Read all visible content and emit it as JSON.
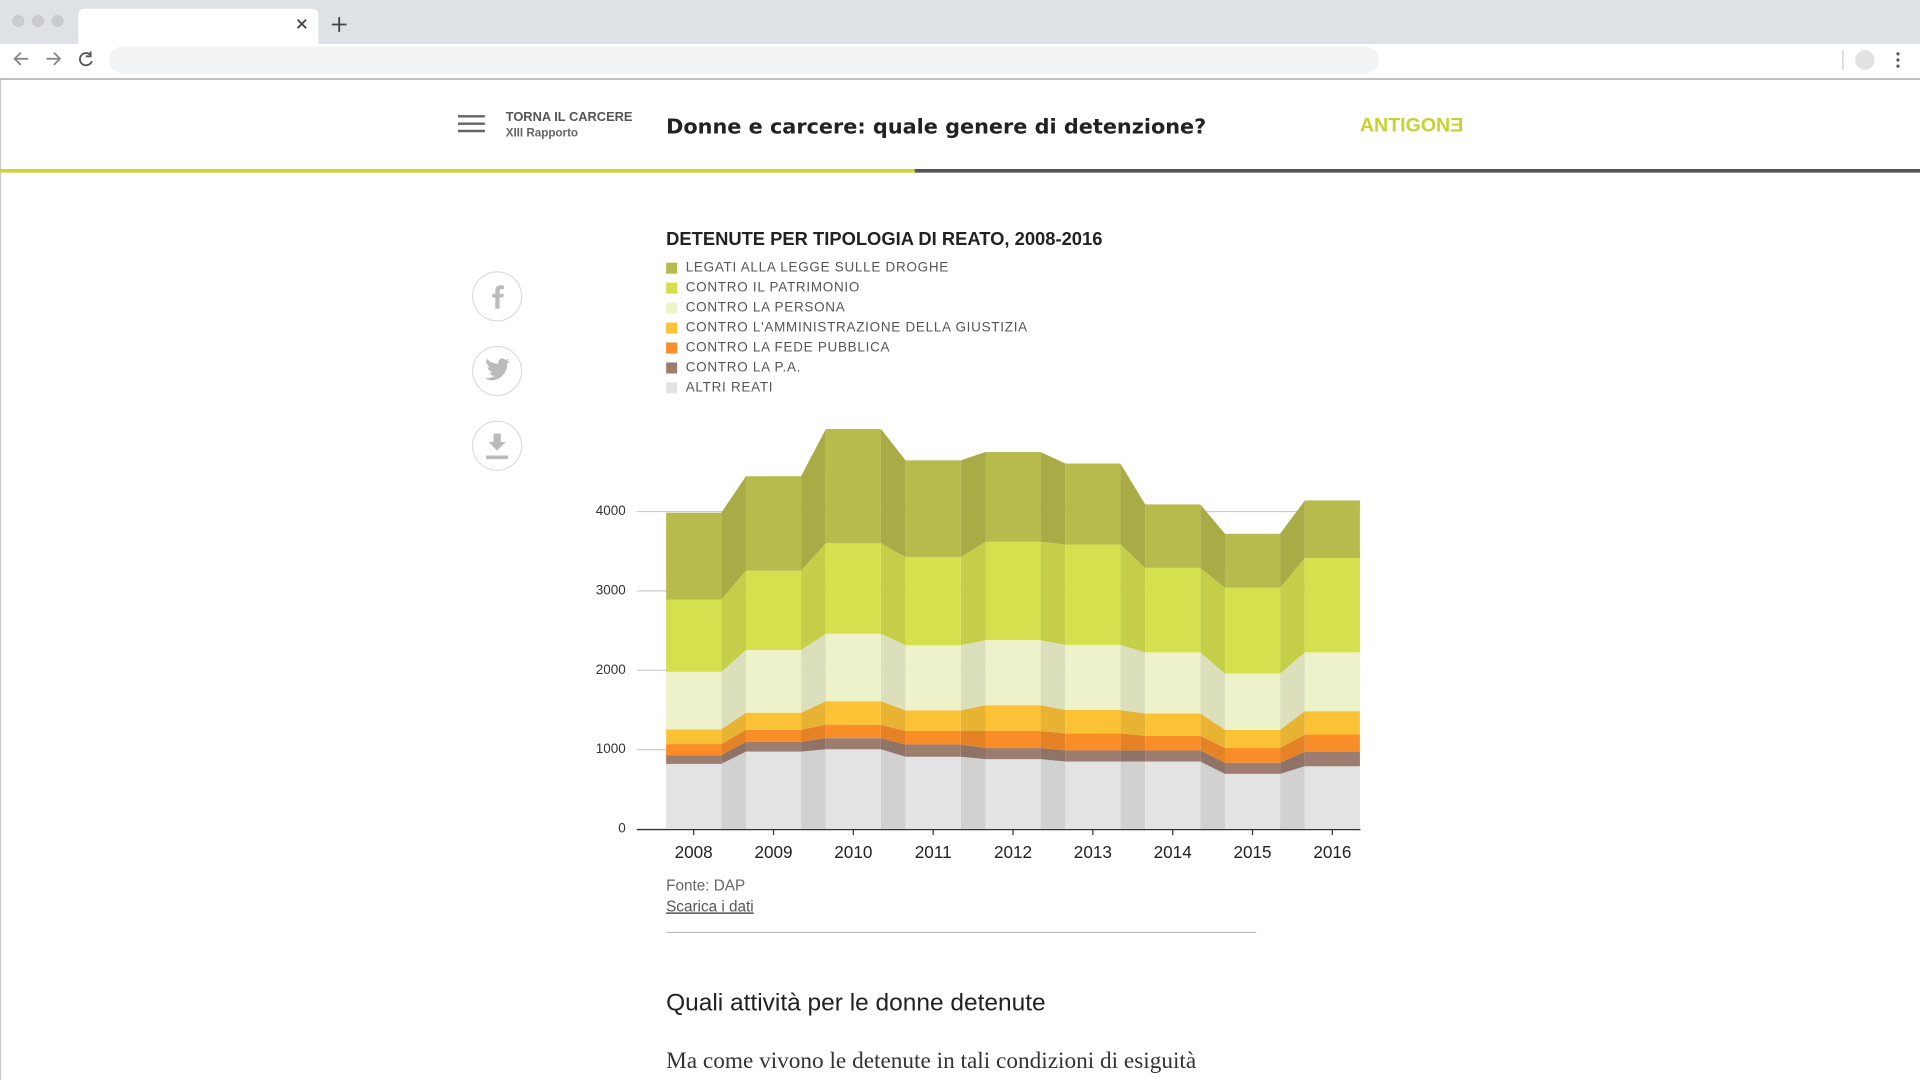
{
  "header": {
    "back_label": "TORNA IL CARCERE",
    "back_sublabel": "XIII Rapporto",
    "title": "Donne e carcere: quale genere di detenzione?",
    "logo": "ANTIGONƎ"
  },
  "chart_data": {
    "type": "stepped-stacked-area",
    "title": "DETENUTE PER TIPOLOGIA DI REATO, 2008-2016",
    "categories": [
      "2008",
      "2009",
      "2010",
      "2011",
      "2012",
      "2013",
      "2014",
      "2015",
      "2016"
    ],
    "series": [
      {
        "name": "LEGATI ALLA LEGGE SULLE DROGHE",
        "color": "#b7ba4c",
        "values": [
          1095,
          1190,
          1440,
          1220,
          1130,
          1020,
          800,
          680,
          725
        ]
      },
      {
        "name": "CONTRO IL PATRIMONIO",
        "color": "#d5e04e",
        "values": [
          910,
          1000,
          1140,
          1110,
          1240,
          1265,
          1065,
          1080,
          1190
        ]
      },
      {
        "name": "CONTRO LA PERSONA",
        "color": "#eef2cb",
        "values": [
          725,
          790,
          850,
          820,
          820,
          820,
          770,
          710,
          740
        ]
      },
      {
        "name": "CONTRO L'AMMINISTRAZIONE DELLA GIUSTIZIA",
        "color": "#fcc236",
        "values": [
          185,
          215,
          295,
          260,
          325,
          295,
          280,
          230,
          295
        ]
      },
      {
        "name": "CONTRO LA FEDE PUBBLICA",
        "color": "#f98d28",
        "values": [
          140,
          150,
          170,
          170,
          215,
          215,
          185,
          185,
          215
        ]
      },
      {
        "name": "CONTRO LA P.A.",
        "color": "#9d7d70",
        "values": [
          110,
          125,
          140,
          155,
          140,
          140,
          140,
          140,
          185
        ]
      },
      {
        "name": "ALTRI REATI",
        "color": "#e3e3e3",
        "values": [
          820,
          975,
          1005,
          910,
          880,
          850,
          850,
          695,
          790
        ]
      }
    ],
    "ylim": [
      0,
      5200
    ],
    "yticks": [
      0,
      1000,
      2000,
      3000,
      4000
    ],
    "grid": true,
    "source": "Fonte: DAP",
    "download_link": "Scarica i dati"
  },
  "article": {
    "heading": "Quali attività per le donne detenute",
    "paragraph": "Ma come vivono le detenute in tali condizioni di esiguità"
  }
}
